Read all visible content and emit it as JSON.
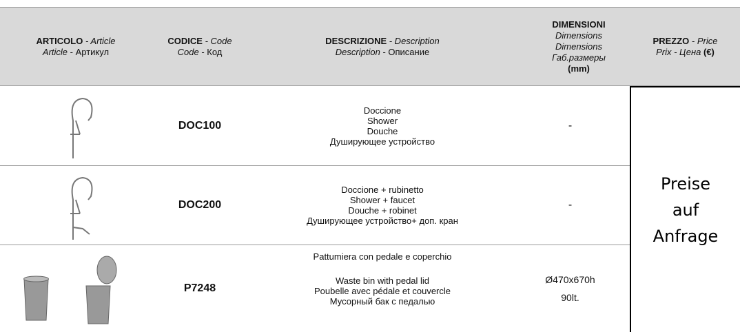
{
  "header": {
    "columns": [
      {
        "line1": [
          "ARTICOLO",
          " - Article"
        ],
        "line2": [
          "Article",
          " - Артикул"
        ]
      },
      {
        "line1": [
          "CODICE",
          " - Code"
        ],
        "line2": [
          "Code",
          " - Код"
        ]
      },
      {
        "line1": [
          "DESCRIZIONE",
          " - Description"
        ],
        "line2": [
          "Description",
          " - Описание"
        ]
      },
      {
        "lines": [
          "DIMENSIONI",
          "Dimensions",
          "Dimensions",
          "Габ.размеры",
          "(mm)"
        ]
      },
      {
        "line1": [
          "PREZZO",
          " - Price"
        ],
        "line2": [
          "Prix - Цена",
          " (€)"
        ]
      }
    ]
  },
  "rows": [
    {
      "code": "DOC100",
      "description": [
        "Doccione",
        "Shower",
        "Douche",
        "Душирующее устройство"
      ],
      "dimensions": [
        "-"
      ]
    },
    {
      "code": "DOC200",
      "description": [
        "Doccione + rubinetto",
        "Shower + faucet",
        "Douche + robinet",
        "Душирующее устройство+ доп. кран"
      ],
      "dimensions": [
        "-"
      ]
    },
    {
      "code": "P7248",
      "description": [
        "Pattumiera con pedale e coperchio",
        "Waste bin with pedal lid",
        "Poubelle avec pédale et couvercle",
        "Мусорный бак с педалью"
      ],
      "dimensions": [
        "Ø470x670h",
        "90lt."
      ]
    }
  ],
  "price": "Preise auf Anfrage"
}
